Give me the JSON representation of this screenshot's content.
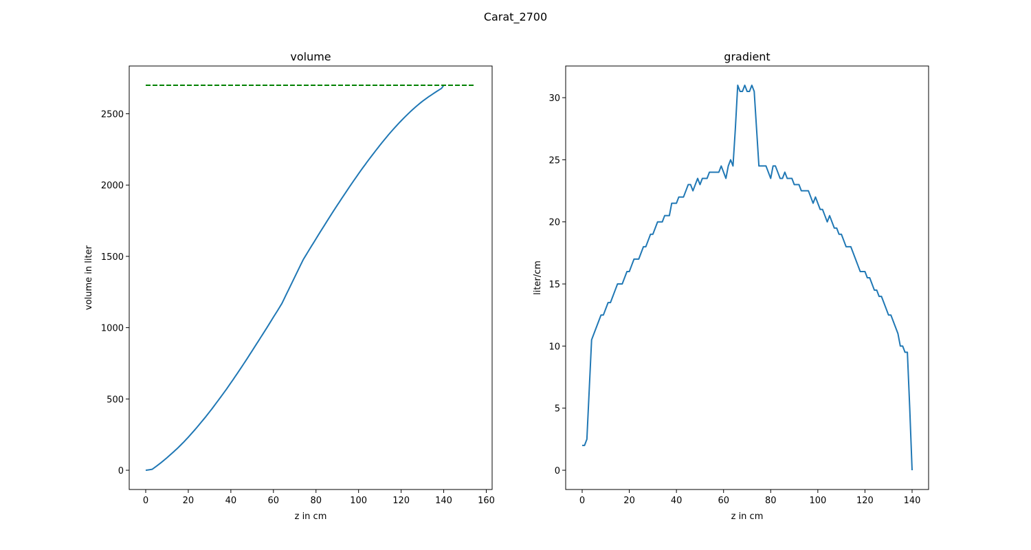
{
  "suptitle": "Carat_2700",
  "chart_data": [
    {
      "type": "line",
      "title": "volume",
      "xlabel": "z in cm",
      "ylabel": "volume in liter",
      "xlim": [
        -7.75,
        162.75
      ],
      "ylim": [
        -135,
        2835
      ],
      "xticks": [
        0,
        20,
        40,
        60,
        80,
        100,
        120,
        140,
        160
      ],
      "yticks": [
        0,
        500,
        1000,
        1500,
        2000,
        2500
      ],
      "grid": false,
      "series": [
        {
          "color": "#1f77b4",
          "style": "solid",
          "x": [
            0,
            1,
            2,
            3,
            4,
            5,
            6,
            7,
            8,
            9,
            10,
            11,
            12,
            13,
            14,
            15,
            16,
            17,
            18,
            19,
            20,
            21,
            22,
            23,
            24,
            25,
            26,
            27,
            28,
            29,
            30,
            31,
            32,
            33,
            34,
            35,
            36,
            37,
            38,
            39,
            40,
            41,
            42,
            43,
            44,
            45,
            46,
            47,
            48,
            49,
            50,
            51,
            52,
            53,
            54,
            55,
            56,
            57,
            58,
            59,
            60,
            61,
            62,
            63,
            64,
            65,
            66,
            67,
            68,
            69,
            70,
            71,
            72,
            73,
            74,
            75,
            76,
            77,
            78,
            79,
            80,
            81,
            82,
            83,
            84,
            85,
            86,
            87,
            88,
            89,
            90,
            91,
            92,
            93,
            94,
            95,
            96,
            97,
            98,
            99,
            100,
            101,
            102,
            103,
            104,
            105,
            106,
            107,
            108,
            109,
            110,
            111,
            112,
            113,
            114,
            115,
            116,
            117,
            118,
            119,
            120,
            121,
            122,
            123,
            124,
            125,
            126,
            127,
            128,
            129,
            130,
            131,
            132,
            133,
            134,
            135,
            136,
            137,
            138,
            139,
            140
          ],
          "y": [
            0.0,
            2.0,
            4.0,
            6.5,
            17.0,
            28.0,
            39.5,
            51.0,
            63.0,
            75.5,
            88.0,
            101.0,
            114.5,
            128.0,
            141.5,
            155.0,
            170.0,
            185.0,
            200.0,
            216.0,
            232.0,
            248.5,
            265.5,
            282.5,
            299.5,
            317.5,
            335.5,
            353.5,
            371.5,
            390.5,
            409.5,
            428.5,
            448.5,
            468.5,
            488.5,
            508.5,
            529.0,
            549.5,
            570.0,
            591.5,
            613.0,
            634.5,
            656.5,
            678.5,
            700.5,
            723.0,
            745.5,
            768.0,
            791.0,
            814.5,
            837.5,
            861.0,
            884.5,
            907.5,
            931.0,
            954.5,
            978.0,
            1001.5,
            1025.5,
            1049.5,
            1074.0,
            1097.5,
            1121.0,
            1145.5,
            1170.0,
            1201.0,
            1232.0,
            1262.5,
            1293.0,
            1324.0,
            1354.5,
            1385.0,
            1416.0,
            1446.5,
            1477.0,
            1501.5,
            1526.0,
            1550.5,
            1575.0,
            1598.5,
            1623.0,
            1647.5,
            1671.5,
            1695.0,
            1718.5,
            1742.5,
            1766.0,
            1789.5,
            1813.0,
            1836.0,
            1859.0,
            1881.5,
            1904.0,
            1926.5,
            1949.0,
            1971.0,
            1993.5,
            2015.0,
            2036.5,
            2058.0,
            2079.5,
            2100.5,
            2121.5,
            2141.5,
            2162.0,
            2182.0,
            2201.5,
            2221.0,
            2240.5,
            2259.5,
            2278.5,
            2297.5,
            2315.5,
            2333.5,
            2351.5,
            2369.0,
            2386.0,
            2402.5,
            2419.0,
            2435.0,
            2450.5,
            2466.0,
            2481.0,
            2495.5,
            2510.0,
            2524.0,
            2537.5,
            2550.5,
            2563.0,
            2575.5,
            2587.5,
            2598.5,
            2609.5,
            2620.0,
            2630.0,
            2640.0,
            2650.0,
            2659.5,
            2669.0,
            2678.5,
            2700.0
          ]
        },
        {
          "color": "#008000",
          "style": "dashed",
          "x": [
            0,
            155
          ],
          "y": [
            2700,
            2700
          ]
        }
      ]
    },
    {
      "type": "line",
      "title": "gradient",
      "xlabel": "z in cm",
      "ylabel": "liter/cm",
      "xlim": [
        -7,
        147
      ],
      "ylim": [
        -1.55,
        32.55
      ],
      "xticks": [
        0,
        20,
        40,
        60,
        80,
        100,
        120,
        140
      ],
      "yticks": [
        0,
        5,
        10,
        15,
        20,
        25,
        30
      ],
      "grid": false,
      "series": [
        {
          "color": "#1f77b4",
          "style": "solid",
          "x": [
            0,
            1,
            2,
            3,
            4,
            5,
            6,
            7,
            8,
            9,
            10,
            11,
            12,
            13,
            14,
            15,
            16,
            17,
            18,
            19,
            20,
            21,
            22,
            23,
            24,
            25,
            26,
            27,
            28,
            29,
            30,
            31,
            32,
            33,
            34,
            35,
            36,
            37,
            38,
            39,
            40,
            41,
            42,
            43,
            44,
            45,
            46,
            47,
            48,
            49,
            50,
            51,
            52,
            53,
            54,
            55,
            56,
            57,
            58,
            59,
            60,
            61,
            62,
            63,
            64,
            65,
            66,
            67,
            68,
            69,
            70,
            71,
            72,
            73,
            74,
            75,
            76,
            77,
            78,
            79,
            80,
            81,
            82,
            83,
            84,
            85,
            86,
            87,
            88,
            89,
            90,
            91,
            92,
            93,
            94,
            95,
            96,
            97,
            98,
            99,
            100,
            101,
            102,
            103,
            104,
            105,
            106,
            107,
            108,
            109,
            110,
            111,
            112,
            113,
            114,
            115,
            116,
            117,
            118,
            119,
            120,
            121,
            122,
            123,
            124,
            125,
            126,
            127,
            128,
            129,
            130,
            131,
            132,
            133,
            134,
            135,
            136,
            137,
            138,
            139,
            140
          ],
          "y": [
            2.0,
            2.0,
            2.5,
            6.5,
            10.5,
            11.0,
            11.5,
            12.0,
            12.5,
            12.5,
            13.0,
            13.5,
            13.5,
            14.0,
            14.5,
            15.0,
            15.0,
            15.0,
            15.5,
            16.0,
            16.0,
            16.5,
            17.0,
            17.0,
            17.0,
            17.5,
            18.0,
            18.0,
            18.5,
            19.0,
            19.0,
            19.5,
            20.0,
            20.0,
            20.0,
            20.5,
            20.5,
            20.5,
            21.5,
            21.5,
            21.5,
            22.0,
            22.0,
            22.0,
            22.5,
            23.0,
            23.0,
            22.5,
            23.0,
            23.5,
            23.0,
            23.5,
            23.5,
            23.5,
            24.0,
            24.0,
            24.0,
            24.0,
            24.0,
            24.5,
            24.0,
            23.5,
            24.5,
            25.0,
            24.5,
            27.5,
            31.0,
            30.5,
            30.5,
            31.0,
            30.5,
            30.5,
            31.0,
            30.5,
            27.5,
            24.5,
            24.5,
            24.5,
            24.5,
            24.0,
            23.5,
            24.5,
            24.5,
            24.0,
            23.5,
            23.5,
            24.0,
            23.5,
            23.5,
            23.5,
            23.0,
            23.0,
            23.0,
            22.5,
            22.5,
            22.5,
            22.5,
            22.0,
            21.5,
            22.0,
            21.5,
            21.0,
            21.0,
            20.5,
            20.0,
            20.5,
            20.0,
            19.5,
            19.5,
            19.0,
            19.0,
            18.5,
            18.0,
            18.0,
            18.0,
            17.5,
            17.0,
            16.5,
            16.0,
            16.0,
            16.0,
            15.5,
            15.5,
            15.0,
            14.5,
            14.5,
            14.0,
            14.0,
            13.5,
            13.0,
            12.5,
            12.5,
            12.0,
            11.5,
            11.0,
            10.0,
            10.0,
            9.5,
            9.5,
            5.0,
            0.0
          ]
        }
      ]
    }
  ]
}
